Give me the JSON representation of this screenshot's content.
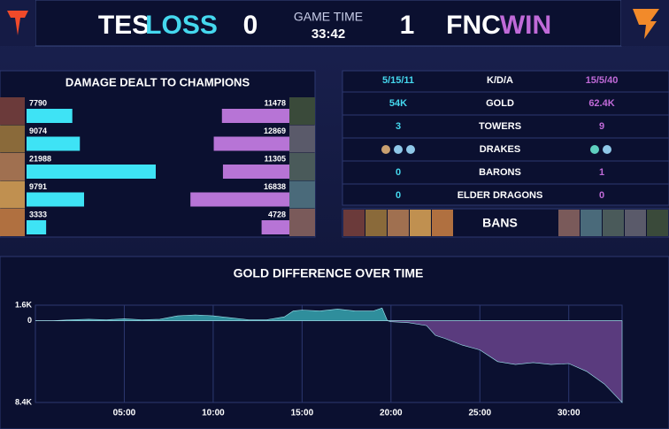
{
  "header": {
    "team_left": "TES",
    "result_left": "LOSS",
    "score_left": "0",
    "time_label": "GAME TIME",
    "time": "33:42",
    "score_right": "1",
    "team_right": "FNC",
    "result_right": "WIN"
  },
  "stats": {
    "rows": [
      {
        "left": "5/15/11",
        "label": "K/D/A",
        "right": "15/5/40"
      },
      {
        "left": "54K",
        "label": "GOLD",
        "right": "62.4K"
      },
      {
        "left": "3",
        "label": "TOWERS",
        "right": "9"
      },
      {
        "label": "DRAKES"
      },
      {
        "left": "0",
        "label": "BARONS",
        "right": "1"
      },
      {
        "left": "0",
        "label": "ELDER DRAGONS",
        "right": "0"
      }
    ],
    "bans_label": "BANS"
  },
  "chart_data": [
    {
      "type": "bar",
      "title": "DAMAGE DEALT TO CHAMPIONS",
      "series": [
        {
          "color": "#3ee3f5",
          "values": [
            7790,
            9074,
            21988,
            9791,
            3333
          ]
        },
        {
          "color": "#b774d6",
          "values": [
            11478,
            12869,
            11305,
            16838,
            4728
          ]
        }
      ]
    },
    {
      "type": "area",
      "title": "GOLD DIFFERENCE OVER TIME",
      "x": [
        0,
        1,
        2,
        3,
        4,
        5,
        6,
        7,
        8,
        9,
        10,
        11,
        12,
        13,
        14,
        14.5,
        15,
        16,
        17,
        18,
        19,
        19.5,
        19.8,
        20,
        21,
        22,
        22.5,
        23,
        24,
        25,
        26,
        27,
        28,
        29,
        30,
        31,
        32,
        33
      ],
      "values": [
        0,
        0,
        100,
        150,
        100,
        200,
        100,
        150,
        500,
        600,
        500,
        300,
        100,
        100,
        400,
        1000,
        1100,
        1000,
        1200,
        1000,
        1000,
        1300,
        0,
        -100,
        -200,
        -500,
        -1500,
        -1800,
        -2500,
        -3000,
        -4200,
        -4500,
        -4300,
        -4500,
        -4400,
        -5200,
        -6500,
        -8400
      ],
      "colors": {
        "positive": "#2f8e9c",
        "negative": "#5a3b7e"
      },
      "xlim": [
        0,
        33
      ],
      "ylim": [
        -8400,
        1600
      ],
      "xticks": [
        {
          "value": 5,
          "label": "05:00"
        },
        {
          "value": 10,
          "label": "10:00"
        },
        {
          "value": 15,
          "label": "15:00"
        },
        {
          "value": 20,
          "label": "20:00"
        },
        {
          "value": 25,
          "label": "25:00"
        },
        {
          "value": 30,
          "label": "30:00"
        }
      ],
      "yticks": [
        {
          "value": 1600,
          "label": "1.6K"
        },
        0,
        {
          "value": -8400,
          "label": "8.4K"
        }
      ],
      "grid": true
    }
  ]
}
